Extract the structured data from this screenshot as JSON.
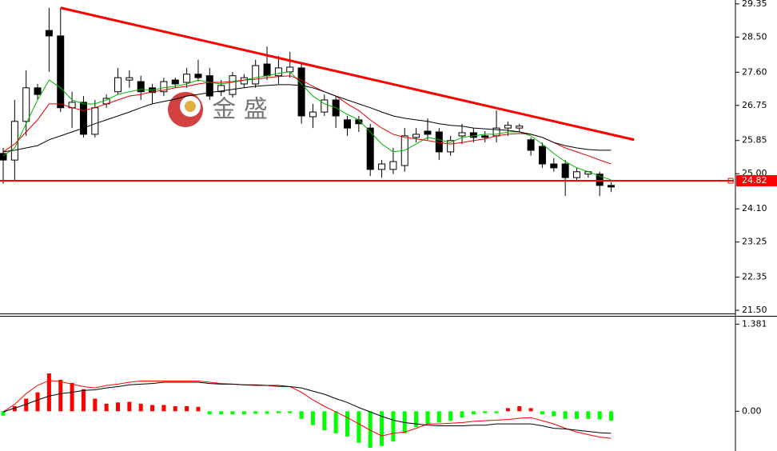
{
  "chart_data": [
    {
      "type": "candlestick",
      "watermark": "金 盛",
      "open": [
        25.52,
        25.35,
        26.34,
        27.2,
        28.67,
        28.53,
        26.69,
        26.83,
        26.01,
        26.79,
        27.1,
        27.4,
        27.36,
        27.2,
        27.1,
        27.4,
        27.34,
        27.55,
        27.51,
        27.1,
        27.03,
        27.3,
        27.3,
        27.81,
        27.51,
        27.61,
        27.71,
        26.46,
        26.58,
        26.89,
        26.38,
        26.38,
        26.17,
        25.11,
        25.11,
        25.21,
        25.93,
        26.09,
        26.07,
        25.56,
        25.97,
        26.05,
        25.97,
        25.97,
        26.17,
        26.17,
        25.87,
        25.7,
        25.25,
        25.25,
        24.9,
        24.99,
        24.99,
        24.7
      ],
      "high": [
        25.66,
        26.89,
        27.65,
        27.3,
        29.25,
        29.25,
        27.1,
        26.99,
        26.89,
        27.03,
        27.71,
        27.65,
        27.51,
        27.3,
        27.46,
        27.46,
        27.71,
        27.92,
        27.71,
        27.4,
        27.61,
        27.55,
        27.92,
        28.26,
        28.02,
        28.12,
        27.81,
        26.79,
        27.03,
        26.99,
        26.48,
        26.48,
        26.28,
        25.35,
        25.66,
        26.17,
        26.17,
        26.42,
        26.17,
        25.97,
        26.28,
        26.17,
        26.09,
        26.62,
        26.34,
        26.28,
        25.93,
        25.8,
        25.4,
        25.35,
        25.15,
        25.05,
        25.05,
        24.78
      ],
      "low": [
        24.74,
        24.84,
        25.97,
        26.89,
        27.61,
        26.58,
        26.17,
        25.93,
        25.93,
        26.69,
        27.03,
        27.2,
        26.89,
        26.79,
        26.99,
        27.2,
        27.2,
        27.36,
        26.89,
        26.99,
        26.95,
        27.2,
        27.2,
        27.4,
        27.3,
        27.46,
        26.28,
        26.17,
        26.48,
        26.17,
        25.97,
        26.07,
        24.94,
        24.9,
        24.99,
        25.05,
        25.8,
        25.87,
        25.35,
        25.46,
        25.76,
        25.8,
        25.8,
        25.8,
        25.97,
        26.07,
        25.46,
        25.15,
        25.05,
        24.43,
        24.84,
        24.9,
        24.43,
        24.53
      ],
      "close": [
        25.35,
        26.34,
        27.2,
        27.03,
        28.53,
        26.69,
        26.83,
        26.01,
        26.69,
        26.93,
        27.46,
        27.46,
        27.1,
        27.08,
        27.36,
        27.3,
        27.55,
        27.46,
        26.99,
        27.26,
        27.51,
        27.46,
        27.77,
        27.51,
        27.71,
        27.73,
        26.48,
        26.58,
        26.89,
        26.48,
        26.17,
        26.28,
        25.11,
        25.25,
        25.31,
        25.97,
        26.01,
        26.01,
        25.56,
        25.85,
        26.05,
        25.93,
        25.93,
        26.17,
        26.24,
        26.22,
        25.6,
        25.25,
        25.15,
        24.9,
        25.05,
        25.05,
        24.7,
        24.66
      ],
      "up_color": "#ffffff",
      "down_color": "#000000",
      "lines": [
        {
          "color": "#00b400",
          "values": [
            25.46,
            25.66,
            26.28,
            26.89,
            27.4,
            27.2,
            26.89,
            26.79,
            26.79,
            26.89,
            27.03,
            27.1,
            27.16,
            27.14,
            27.2,
            27.24,
            27.3,
            27.4,
            27.34,
            27.3,
            27.34,
            27.4,
            27.46,
            27.51,
            27.57,
            27.61,
            27.3,
            26.99,
            26.79,
            26.69,
            26.52,
            26.38,
            26.07,
            25.76,
            25.56,
            25.6,
            25.76,
            25.93,
            25.87,
            25.8,
            25.93,
            25.97,
            26.01,
            26.01,
            26.07,
            26.07,
            25.97,
            25.76,
            25.52,
            25.31,
            25.15,
            25.05,
            24.94,
            24.84
          ]
        },
        {
          "color": "#e00000",
          "values": [
            25.56,
            25.76,
            26.07,
            26.38,
            26.79,
            26.79,
            26.69,
            26.62,
            26.69,
            26.79,
            26.89,
            26.99,
            27.03,
            27.1,
            27.14,
            27.2,
            27.24,
            27.3,
            27.34,
            27.34,
            27.36,
            27.4,
            27.42,
            27.46,
            27.49,
            27.51,
            27.4,
            27.24,
            27.1,
            26.99,
            26.79,
            26.62,
            26.38,
            26.17,
            26.01,
            25.93,
            25.89,
            25.85,
            25.8,
            25.76,
            25.8,
            25.85,
            25.89,
            25.97,
            26.01,
            26.03,
            26.01,
            25.93,
            25.8,
            25.66,
            25.56,
            25.46,
            25.35,
            25.25
          ]
        },
        {
          "color": "#000000",
          "values": [
            25.56,
            25.6,
            25.66,
            25.72,
            25.87,
            25.97,
            26.07,
            26.17,
            26.28,
            26.38,
            26.48,
            26.58,
            26.69,
            26.79,
            26.85,
            26.91,
            26.99,
            27.03,
            27.08,
            27.12,
            27.16,
            27.2,
            27.24,
            27.26,
            27.28,
            27.28,
            27.26,
            27.2,
            27.1,
            26.99,
            26.89,
            26.79,
            26.69,
            26.58,
            26.48,
            26.42,
            26.38,
            26.34,
            26.28,
            26.24,
            26.22,
            26.17,
            26.15,
            26.13,
            26.11,
            26.07,
            26.01,
            25.93,
            25.8,
            25.72,
            25.66,
            25.62,
            25.6,
            25.6
          ]
        }
      ],
      "trendline": {
        "color": "#ff0000",
        "x": [
          5,
          55
        ],
        "values": [
          29.25,
          25.87
        ]
      },
      "price_line": 24.82,
      "price_color": "#ff0000",
      "ylim": [
        21.42,
        29.45
      ],
      "yticks": [
        29.35,
        {
          "value": 28.5,
          "label": "28.50"
        },
        {
          "value": 27.6,
          "label": "27.60"
        },
        26.75,
        25.85,
        {
          "value": 25,
          "label": "25.00"
        },
        {
          "value": 24.1,
          "label": "24.10"
        },
        23.25,
        22.35,
        {
          "value": 21.5,
          "label": "21.50"
        }
      ]
    },
    {
      "type": "macd",
      "histogram": [
        -0.07,
        0.08,
        0.2,
        0.3,
        0.6,
        0.5,
        0.45,
        0.35,
        0.2,
        0.12,
        0.14,
        0.15,
        0.12,
        0.1,
        0.1,
        0.08,
        0.08,
        0.07,
        -0.05,
        -0.05,
        -0.05,
        -0.05,
        -0.04,
        -0.04,
        -0.03,
        -0.03,
        -0.12,
        -0.22,
        -0.3,
        -0.35,
        -0.4,
        -0.5,
        -0.58,
        -0.55,
        -0.48,
        -0.35,
        -0.25,
        -0.2,
        -0.18,
        -0.15,
        -0.1,
        -0.05,
        -0.03,
        -0.03,
        0.05,
        0.08,
        0.05,
        -0.05,
        -0.08,
        -0.12,
        -0.12,
        -0.12,
        -0.13,
        -0.15
      ],
      "positive_color": "#ff0000",
      "negative_color": "#00ff00",
      "lines": [
        {
          "color": "#ff0000",
          "values": [
            -0.01,
            0.11,
            0.28,
            0.41,
            0.49,
            0.47,
            0.43,
            0.39,
            0.37,
            0.41,
            0.43,
            0.46,
            0.48,
            0.48,
            0.48,
            0.48,
            0.48,
            0.48,
            0.46,
            0.44,
            0.43,
            0.42,
            0.41,
            0.41,
            0.39,
            0.39,
            0.3,
            0.18,
            0.08,
            -0.01,
            -0.1,
            -0.2,
            -0.3,
            -0.39,
            -0.35,
            -0.33,
            -0.27,
            -0.2,
            -0.2,
            -0.19,
            -0.18,
            -0.16,
            -0.15,
            -0.14,
            -0.13,
            -0.11,
            -0.1,
            -0.15,
            -0.2,
            -0.27,
            -0.33,
            -0.37,
            -0.41,
            -0.43
          ]
        },
        {
          "color": "#000000",
          "values": [
            -0.01,
            0.05,
            0.11,
            0.18,
            0.24,
            0.28,
            0.3,
            0.33,
            0.34,
            0.37,
            0.39,
            0.42,
            0.43,
            0.44,
            0.46,
            0.46,
            0.46,
            0.46,
            0.44,
            0.43,
            0.43,
            0.42,
            0.42,
            0.41,
            0.41,
            0.39,
            0.37,
            0.32,
            0.27,
            0.2,
            0.14,
            0.06,
            -0.01,
            -0.08,
            -0.14,
            -0.18,
            -0.2,
            -0.22,
            -0.23,
            -0.23,
            -0.23,
            -0.22,
            -0.22,
            -0.2,
            -0.2,
            -0.2,
            -0.2,
            -0.23,
            -0.27,
            -0.28,
            -0.3,
            -0.32,
            -0.34,
            -0.35
          ]
        }
      ],
      "ylim": [
        -0.63,
        1.5
      ],
      "yticks": [
        1.381,
        {
          "value": 0,
          "label": "0.00"
        }
      ]
    }
  ]
}
